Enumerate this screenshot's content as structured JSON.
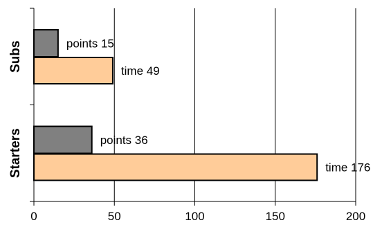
{
  "chart_data": {
    "type": "bar",
    "orientation": "horizontal",
    "categories": [
      "Subs",
      "Starters"
    ],
    "series": [
      {
        "values": [
          15,
          36
        ],
        "data_labels": [
          "points 15",
          "points 36"
        ]
      },
      {
        "values": [
          49,
          176
        ],
        "data_labels": [
          "time 49",
          "time 176"
        ]
      }
    ],
    "xlim": [
      0,
      200
    ],
    "x_ticks": [
      0,
      50,
      100,
      150,
      200
    ],
    "x_tick_labels": [
      "0",
      "50",
      "100",
      "150",
      "200"
    ],
    "grid": true,
    "legend": "none",
    "colors": {
      "series0": "#808080",
      "series1": "#FFCC99",
      "border": "#000000",
      "grid": "#000000"
    }
  }
}
